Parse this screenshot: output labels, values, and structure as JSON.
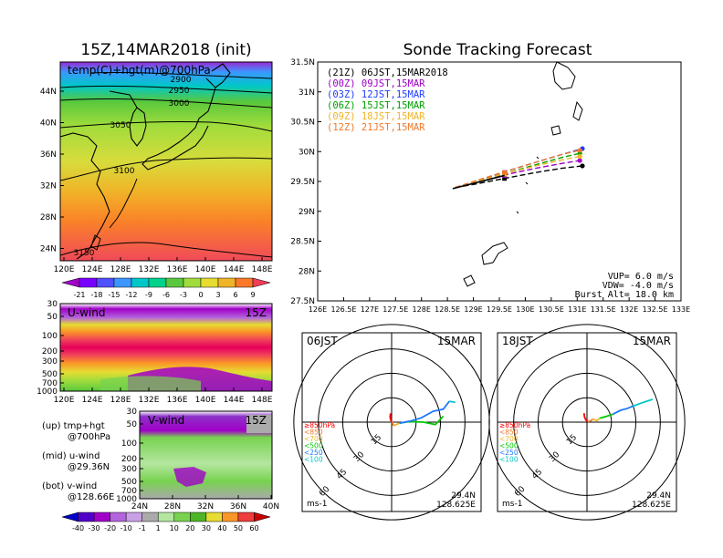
{
  "left": {
    "title": "15Z,14MAR2018 (init)",
    "map_label": "temp(C)+hgt(m)@700hPa",
    "lat_ticks": [
      "44N",
      "40N",
      "36N",
      "32N",
      "28N",
      "24N"
    ],
    "lon_ticks": [
      "120E",
      "124E",
      "128E",
      "132E",
      "136E",
      "140E",
      "144E",
      "148E"
    ],
    "contour_labels": [
      "2900",
      "2950",
      "3000",
      "3050",
      "3100",
      "3150"
    ],
    "temp_colorbar": [
      "-21",
      "-18",
      "-15",
      "-12",
      "-9",
      "-6",
      "-3",
      "0",
      "3",
      "6",
      "9"
    ],
    "temp_colors": [
      "#a000c8",
      "#7800ff",
      "#5050ff",
      "#3c96ff",
      "#00c8c8",
      "#00d28c",
      "#5ac83c",
      "#a0dc3c",
      "#e6dc32",
      "#f0b428",
      "#fa7828",
      "#f03c5a"
    ],
    "uwind_label": "U-wind",
    "uwind_time": "15Z",
    "vwind_label": "V-wind",
    "vwind_time": "15Z",
    "p_ticks": [
      "30",
      "50",
      "100",
      "200",
      "300",
      "500",
      "700",
      "1000"
    ],
    "vwind_lat_ticks": [
      "24N",
      "28N",
      "32N",
      "36N",
      "40N"
    ],
    "wind_colorbar": [
      "-40",
      "-30",
      "-20",
      "-10",
      "-1",
      "1",
      "10",
      "20",
      "30",
      "40",
      "50",
      "60"
    ],
    "wind_colors": [
      "#0000c8",
      "#5000c8",
      "#a000c8",
      "#b464dc",
      "#c8a0e6",
      "#aaaaaa",
      "#b4e6a0",
      "#78d250",
      "#50b428",
      "#e6dc32",
      "#fa9628",
      "#f03c3c",
      "#c80000"
    ],
    "notes": [
      {
        "lines": [
          "(up) tmp+hgt",
          "@700hPa"
        ]
      },
      {
        "lines": [
          "(mid) u-wind",
          "@29.36N"
        ]
      },
      {
        "lines": [
          "(bot) v-wind",
          "@128.66E"
        ]
      }
    ]
  },
  "track": {
    "title": "Sonde Tracking Forecast",
    "legend": [
      {
        "text": "(21Z) 06JST,15MAR2018",
        "color": "#000000"
      },
      {
        "text": "(00Z) 09JST,15MAR",
        "color": "#a000c8"
      },
      {
        "text": "(03Z) 12JST,15MAR",
        "color": "#1e3cff"
      },
      {
        "text": "(06Z) 15JST,15MAR",
        "color": "#00a000"
      },
      {
        "text": "(09Z) 18JST,15MAR",
        "color": "#f0b428"
      },
      {
        "text": "(12Z) 21JST,15MAR",
        "color": "#f07828"
      }
    ],
    "lat_ticks": [
      "31.5N",
      "31N",
      "30.5N",
      "30N",
      "29.5N",
      "29N",
      "28.5N",
      "28N",
      "27.5N"
    ],
    "lon_ticks": [
      "126E",
      "126.5E",
      "127E",
      "127.5E",
      "128E",
      "128.5E",
      "129E",
      "129.5E",
      "130E",
      "130.5E",
      "131E",
      "131.5E",
      "132E",
      "132.5E",
      "133E"
    ],
    "params": [
      "VUP= 6.0 m/s",
      "VDW= -4.0 m/s",
      "Burst Alt= 18.0 km"
    ]
  },
  "hodo1": {
    "time": "06JST",
    "date": "15MAR",
    "lat": "29.4N",
    "lon": "128.625E",
    "unit": "ms-1"
  },
  "hodo2": {
    "time": "18JST",
    "date": "15MAR",
    "lat": "29.4N",
    "lon": "128.625E",
    "unit": "ms-1"
  },
  "hodo_common": {
    "ring_labels": [
      "15",
      "30",
      "45",
      "60"
    ],
    "levels": [
      {
        "text": "≥850hPa",
        "color": "#ff0000"
      },
      {
        "text": "<850",
        "color": "#f07828"
      },
      {
        "text": "<700",
        "color": "#f0b428"
      },
      {
        "text": "<500",
        "color": "#00c800"
      },
      {
        "text": "<250",
        "color": "#1e78ff"
      },
      {
        "text": "<100",
        "color": "#00c8c8"
      }
    ]
  },
  "chart_data": [
    {
      "type": "line",
      "title": "Sonde Tracking Forecast",
      "xlabel": "",
      "ylabel": "",
      "xlim": [
        126,
        133
      ],
      "ylim": [
        27.5,
        31.5
      ],
      "series": [
        {
          "name": "(21Z) 06JST,15MAR2018",
          "color": "#000000",
          "dash": "6,3",
          "x": [
            128.65,
            129.0,
            129.6,
            130.2,
            130.7,
            131.1
          ],
          "y": [
            29.4,
            29.45,
            29.55,
            29.65,
            29.72,
            29.76
          ]
        },
        {
          "name": "(00Z) 09JST,15MAR",
          "color": "#a000c8",
          "dash": "6,3",
          "x": [
            128.65,
            129.0,
            129.55,
            130.2,
            130.7,
            131.05
          ],
          "y": [
            29.4,
            29.47,
            29.6,
            29.72,
            29.8,
            29.85
          ]
        },
        {
          "name": "(03Z) 12JST,15MAR",
          "color": "#1e3cff",
          "dash": "6,3",
          "x": [
            128.65,
            129.0,
            129.55,
            130.2,
            130.7,
            131.1
          ],
          "y": [
            29.4,
            29.48,
            29.65,
            29.82,
            29.95,
            30.05
          ]
        },
        {
          "name": "(06Z) 15JST,15MAR",
          "color": "#00a000",
          "dash": "6,3",
          "x": [
            128.65,
            129.0,
            129.55,
            130.2,
            130.7,
            131.05
          ],
          "y": [
            29.4,
            29.48,
            29.62,
            29.78,
            29.9,
            29.97
          ]
        },
        {
          "name": "(09Z) 18JST,15MAR",
          "color": "#f0b428",
          "dash": "6,3",
          "x": [
            128.65,
            129.0,
            129.55,
            130.2,
            130.7,
            131.05
          ],
          "y": [
            29.4,
            29.48,
            29.62,
            29.76,
            29.86,
            29.92
          ]
        },
        {
          "name": "(12Z) 21JST,15MAR",
          "color": "#f07828",
          "dash": "6,3",
          "x": [
            128.65,
            129.0,
            129.55,
            130.2,
            130.7,
            131.05
          ],
          "y": [
            29.4,
            29.5,
            29.65,
            29.82,
            29.95,
            30.02
          ]
        }
      ]
    },
    {
      "type": "line",
      "title": "06JST 15MAR",
      "xlabel": "",
      "ylabel": "",
      "xlim": [
        -45,
        45
      ],
      "ylim": [
        -45,
        45
      ],
      "series": [
        {
          "color": "#ff0000",
          "x": [
            -0.5,
            -0.8,
            -0.3,
            0.2
          ],
          "y": [
            4.5,
            2.5,
            0.8,
            0.2
          ]
        },
        {
          "color": "#f07828",
          "x": [
            0.2,
            0.6,
            1.0
          ],
          "y": [
            0.2,
            -1.0,
            -1.8
          ]
        },
        {
          "color": "#f0b428",
          "x": [
            1.0,
            2.5,
            4.0
          ],
          "y": [
            -1.8,
            -1.2,
            -0.5
          ]
        },
        {
          "color": "#00c800",
          "x": [
            4.0,
            9.0,
            16.0,
            22.0,
            26.0
          ],
          "y": [
            -0.5,
            0.3,
            0.0,
            -1.2,
            3.0
          ]
        },
        {
          "color": "#1e78ff",
          "x": [
            4.0,
            10.0,
            15.0,
            21.0,
            26.0,
            29.0
          ],
          "y": [
            -0.5,
            0.7,
            2.2,
            5.5,
            6.5,
            10.5
          ]
        },
        {
          "color": "#00c8c8",
          "x": [
            29.0,
            32.0
          ],
          "y": [
            10.5,
            10.0
          ]
        }
      ]
    },
    {
      "type": "line",
      "title": "18JST 15MAR",
      "xlabel": "",
      "ylabel": "",
      "xlim": [
        -45,
        45
      ],
      "ylim": [
        -45,
        45
      ],
      "series": [
        {
          "color": "#ff0000",
          "x": [
            -1.5,
            -1.2,
            -0.5,
            0.5
          ],
          "y": [
            4.5,
            2.5,
            1.0,
            0.2
          ]
        },
        {
          "color": "#f07828",
          "x": [
            0.5,
            2.0,
            3.0
          ],
          "y": [
            0.2,
            0.8,
            1.5
          ]
        },
        {
          "color": "#f0b428",
          "x": [
            3.0,
            5.0,
            6.5
          ],
          "y": [
            1.5,
            0.8,
            2.0
          ]
        },
        {
          "color": "#00c800",
          "x": [
            6.5,
            10.0,
            13.0
          ],
          "y": [
            2.0,
            3.0,
            4.0
          ]
        },
        {
          "color": "#1e78ff",
          "x": [
            13.0,
            17.0,
            20.0,
            23.0
          ],
          "y": [
            4.0,
            6.0,
            6.8,
            8.0
          ]
        },
        {
          "color": "#00c8c8",
          "x": [
            23.0,
            27.0,
            30.0,
            33.0
          ],
          "y": [
            8.0,
            9.5,
            10.5,
            11.5
          ]
        }
      ]
    }
  ]
}
